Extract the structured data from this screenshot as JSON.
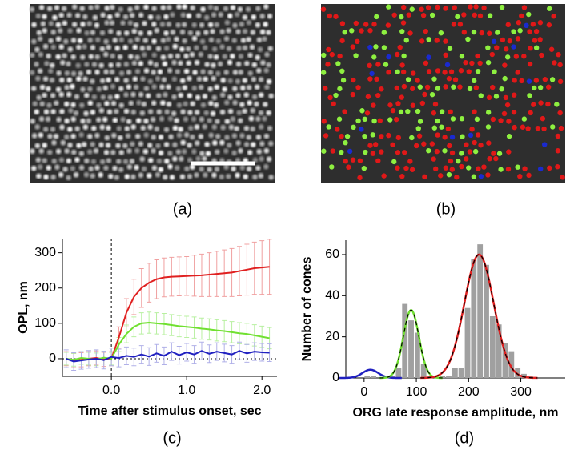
{
  "panel_labels": [
    "(a)",
    "(b)",
    "(c)",
    "(d)"
  ],
  "chart_data": [
    {
      "type": "line",
      "xlabel": "Time after stimulus onset, sec",
      "ylabel": "OPL, nm",
      "x": [
        -0.6,
        -0.5,
        -0.4,
        -0.3,
        -0.2,
        -0.1,
        0,
        0.1,
        0.2,
        0.3,
        0.4,
        0.5,
        0.6,
        0.7,
        0.8,
        0.9,
        1.0,
        1.1,
        1.2,
        1.3,
        1.4,
        1.5,
        1.6,
        1.7,
        1.8,
        1.9,
        2.0,
        2.1
      ],
      "xlim": [
        -0.65,
        2.2
      ],
      "xticks": [
        {
          "value": 0,
          "label": "0.0"
        },
        {
          "value": 1,
          "label": "1.0"
        },
        {
          "value": 2,
          "label": "2.0"
        }
      ],
      "ylim": [
        -50,
        340
      ],
      "yticks": [
        0,
        100,
        200,
        300
      ],
      "series": [
        {
          "color": "#e02020",
          "error_color": "#f0a0a0",
          "values": [
            0,
            -5,
            -3,
            0,
            2,
            -2,
            0,
            60,
            130,
            175,
            200,
            215,
            225,
            230,
            232,
            233,
            234,
            235,
            236,
            238,
            240,
            242,
            244,
            248,
            252,
            256,
            258,
            260
          ],
          "errors": [
            20,
            20,
            20,
            20,
            20,
            20,
            20,
            30,
            40,
            50,
            55,
            55,
            55,
            55,
            55,
            55,
            55,
            58,
            60,
            62,
            64,
            66,
            68,
            70,
            72,
            74,
            76,
            78
          ]
        },
        {
          "color": "#70e030",
          "error_color": "#b8f0a0",
          "values": [
            0,
            -3,
            2,
            0,
            -2,
            3,
            0,
            40,
            70,
            90,
            100,
            102,
            100,
            98,
            95,
            92,
            90,
            88,
            85,
            83,
            80,
            78,
            75,
            72,
            70,
            66,
            62,
            58
          ],
          "errors": [
            18,
            18,
            18,
            18,
            18,
            18,
            18,
            20,
            25,
            28,
            30,
            30,
            30,
            30,
            30,
            30,
            30,
            30,
            30,
            30,
            30,
            30,
            30,
            30,
            30,
            30,
            30,
            30
          ]
        },
        {
          "color": "#2020c0",
          "error_color": "#b0b0e8",
          "values": [
            0,
            -8,
            -5,
            -2,
            0,
            -4,
            5,
            2,
            8,
            5,
            12,
            6,
            15,
            8,
            20,
            10,
            18,
            12,
            22,
            14,
            20,
            16,
            12,
            22,
            15,
            20,
            18,
            17
          ],
          "errors": [
            25,
            25,
            25,
            25,
            25,
            25,
            25,
            25,
            25,
            25,
            25,
            25,
            25,
            25,
            25,
            25,
            25,
            25,
            25,
            25,
            25,
            25,
            25,
            25,
            25,
            25,
            25,
            25
          ]
        }
      ]
    },
    {
      "type": "histogram",
      "xlabel": "ORG late response amplitude, nm",
      "ylabel": "Number of cones",
      "bins": [
        0,
        12,
        24,
        36,
        48,
        60,
        72,
        84,
        96,
        108,
        120,
        132,
        144,
        156,
        168,
        180,
        192,
        204,
        216,
        228,
        240,
        252,
        264,
        276,
        288,
        300,
        312,
        324,
        336
      ],
      "counts": [
        1,
        1,
        0,
        0,
        1,
        5,
        36,
        28,
        22,
        7,
        1,
        0,
        1,
        1,
        5,
        5,
        34,
        58,
        65,
        55,
        30,
        26,
        17,
        13,
        5,
        2,
        1,
        0
      ],
      "color": "#a0a0a0",
      "xlim": [
        -35,
        385
      ],
      "xticks": [
        0,
        100,
        200,
        300
      ],
      "ylim": [
        0,
        67
      ],
      "yticks": [
        0,
        20,
        40,
        60
      ],
      "fits": [
        {
          "color": "#2020c0",
          "amplitude": 4,
          "mean": 12,
          "sd": 15
        },
        {
          "color": "#70e030",
          "amplitude": 33,
          "mean": 90,
          "sd": 15
        },
        {
          "color": "#e02020",
          "amplitude": 60,
          "mean": 220,
          "sd": 28
        }
      ]
    }
  ]
}
